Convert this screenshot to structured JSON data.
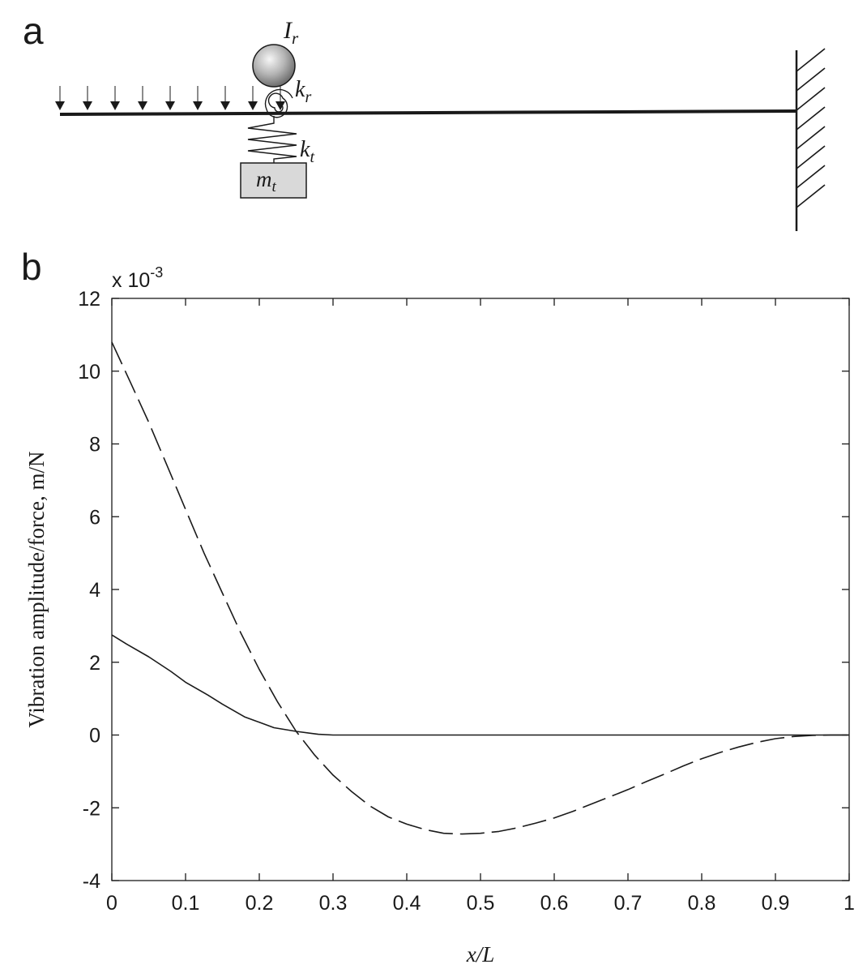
{
  "figure": {
    "panel_a": {
      "letter": "a",
      "labels": {
        "rot_inertia": "I",
        "rot_inertia_sub": "r",
        "rot_spring": "k",
        "rot_spring_sub": "r",
        "trans_spring": "k",
        "trans_spring_sub": "t",
        "mass": "m",
        "mass_sub": "t"
      }
    },
    "panel_b": {
      "letter": "b"
    }
  },
  "chart_data": {
    "type": "line",
    "xlabel": "x/L",
    "ylabel": "Vibration amplitude/force, m/N",
    "y_multiplier": "x 10",
    "y_multiplier_exp": "-3",
    "xlim": [
      0,
      1
    ],
    "ylim": [
      -4,
      12
    ],
    "xticks": [
      "0",
      "0.1",
      "0.2",
      "0.3",
      "0.4",
      "0.5",
      "0.6",
      "0.7",
      "0.8",
      "0.9",
      "1"
    ],
    "yticks": [
      "-4",
      "-2",
      "0",
      "2",
      "4",
      "6",
      "8",
      "10",
      "12"
    ],
    "grid": false,
    "series": [
      {
        "style": "solid",
        "x": [
          0,
          0.02,
          0.05,
          0.08,
          0.1,
          0.13,
          0.15,
          0.18,
          0.2,
          0.22,
          0.25,
          0.28,
          0.3,
          0.4,
          0.5,
          0.6,
          0.7,
          0.8,
          0.9,
          1.0
        ],
        "y": [
          2.75,
          2.5,
          2.15,
          1.75,
          1.45,
          1.1,
          0.85,
          0.5,
          0.35,
          0.2,
          0.1,
          0.02,
          0,
          0,
          0,
          0,
          0,
          0,
          0,
          0
        ]
      },
      {
        "style": "dashed",
        "x": [
          0,
          0.025,
          0.05,
          0.075,
          0.1,
          0.125,
          0.15,
          0.175,
          0.2,
          0.225,
          0.25,
          0.275,
          0.3,
          0.325,
          0.35,
          0.375,
          0.4,
          0.425,
          0.45,
          0.475,
          0.5,
          0.525,
          0.55,
          0.575,
          0.6,
          0.625,
          0.65,
          0.675,
          0.7,
          0.725,
          0.75,
          0.775,
          0.8,
          0.825,
          0.85,
          0.875,
          0.9,
          0.925,
          0.95,
          0.975,
          1.0
        ],
        "y": [
          10.8,
          9.7,
          8.6,
          7.4,
          6.2,
          5.0,
          3.9,
          2.8,
          1.8,
          0.9,
          0.1,
          -0.55,
          -1.1,
          -1.55,
          -1.95,
          -2.25,
          -2.45,
          -2.6,
          -2.7,
          -2.72,
          -2.7,
          -2.65,
          -2.55,
          -2.42,
          -2.28,
          -2.1,
          -1.9,
          -1.7,
          -1.5,
          -1.28,
          -1.07,
          -0.85,
          -0.65,
          -0.48,
          -0.33,
          -0.2,
          -0.1,
          -0.04,
          -0.01,
          0.0,
          0.0
        ]
      }
    ]
  }
}
